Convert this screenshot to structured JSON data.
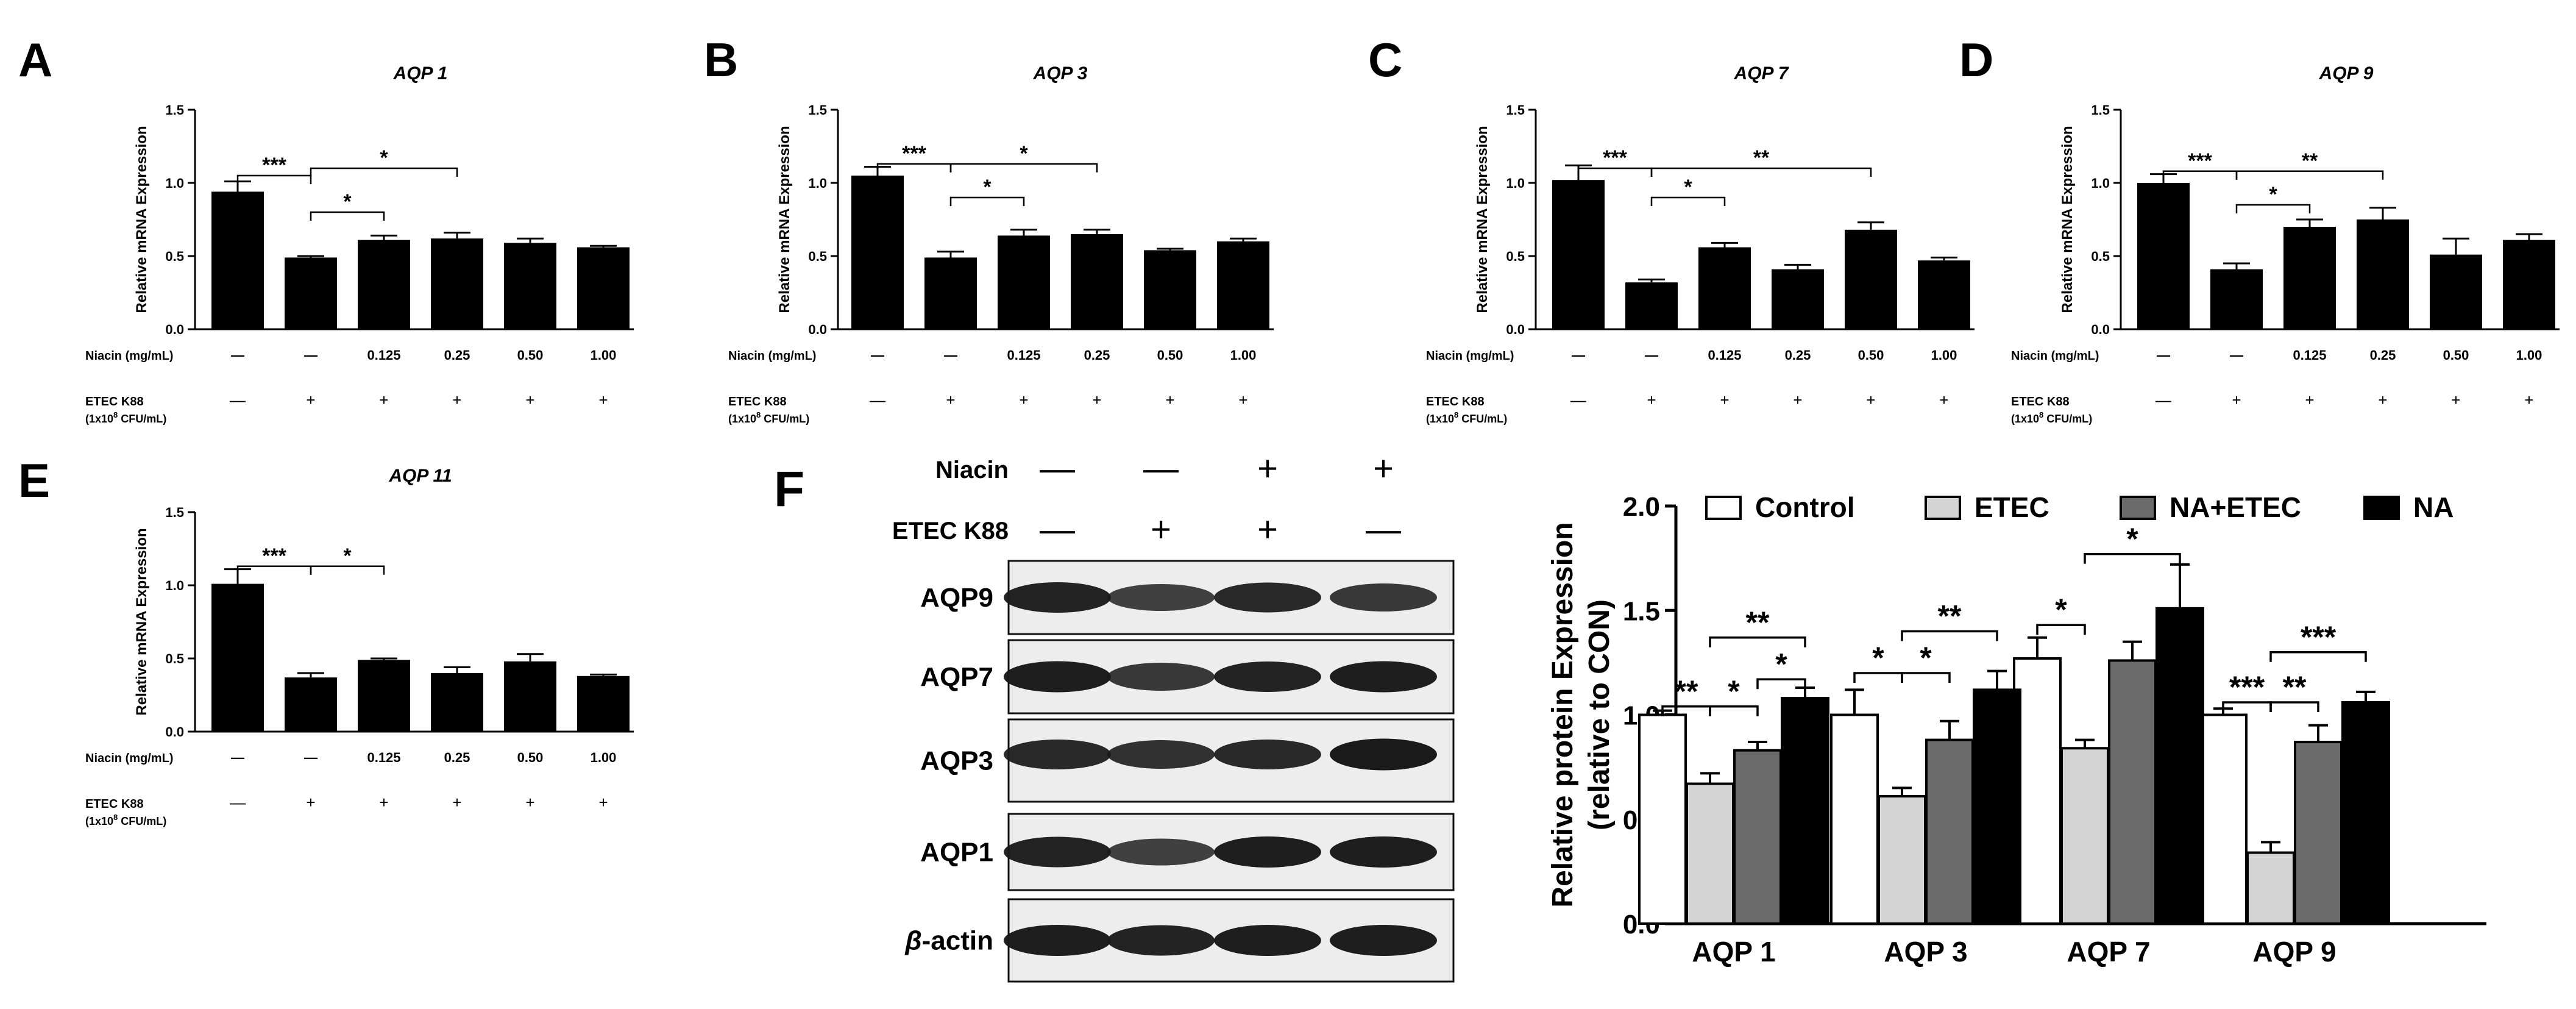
{
  "conditions": {
    "niacin_label": "Niacin (mg/mL)",
    "niacin_values": [
      "—",
      "—",
      "0.125",
      "0.25",
      "0.50",
      "1.00"
    ],
    "etec_label": "ETEC K88",
    "etec_unit_prefix": "(1x10",
    "etec_unit_exp": "8",
    "etec_unit_suffix": " CFU/mL)",
    "etec_values": [
      "—",
      "+",
      "+",
      "+",
      "+",
      "+"
    ]
  },
  "blot": {
    "letter": "F",
    "header_rows": [
      {
        "label": "Niacin",
        "values": [
          "—",
          "—",
          "+",
          "+"
        ]
      },
      {
        "label": "ETEC K88",
        "values": [
          "—",
          "+",
          "+",
          "—"
        ]
      }
    ],
    "bands": [
      "AQP9",
      "AQP7",
      "AQP3",
      "AQP1"
    ],
    "loading_prefix": "β",
    "loading_suffix": "-actin"
  },
  "chart_data": [
    {
      "type": "bar",
      "panel": "A",
      "title": "AQP 1",
      "ylabel": "Relative mRNA Expression",
      "ylim": [
        0,
        1.5
      ],
      "yticks": [
        "0.0",
        "0.5",
        "1.0",
        "1.5"
      ],
      "values": [
        0.94,
        0.49,
        0.61,
        0.62,
        0.59,
        0.56
      ],
      "errors": [
        0.07,
        0.01,
        0.03,
        0.04,
        0.03,
        0.01
      ],
      "annotations": [
        {
          "from": 0,
          "to": 1,
          "label": "***",
          "y": 1.05
        },
        {
          "from": 1,
          "to": 2,
          "label": "*",
          "y": 0.8
        },
        {
          "from": 1,
          "to": 3,
          "label": "*",
          "y": 1.1
        }
      ]
    },
    {
      "type": "bar",
      "panel": "B",
      "title": "AQP 3",
      "ylabel": "Relative mRNA Expression",
      "ylim": [
        0,
        1.5
      ],
      "yticks": [
        "0.0",
        "0.5",
        "1.0",
        "1.5"
      ],
      "values": [
        1.05,
        0.49,
        0.64,
        0.65,
        0.54,
        0.6
      ],
      "errors": [
        0.06,
        0.04,
        0.04,
        0.03,
        0.01,
        0.02
      ],
      "annotations": [
        {
          "from": 0,
          "to": 1,
          "label": "***",
          "y": 1.13
        },
        {
          "from": 1,
          "to": 2,
          "label": "*",
          "y": 0.9
        },
        {
          "from": 1,
          "to": 3,
          "label": "*",
          "y": 1.13
        }
      ]
    },
    {
      "type": "bar",
      "panel": "C",
      "title": "AQP 7",
      "ylabel": "Relative mRNA Expression",
      "ylim": [
        0,
        1.5
      ],
      "yticks": [
        "0.0",
        "0.5",
        "1.0",
        "1.5"
      ],
      "values": [
        1.02,
        0.32,
        0.56,
        0.41,
        0.68,
        0.47
      ],
      "errors": [
        0.1,
        0.02,
        0.03,
        0.03,
        0.05,
        0.02
      ],
      "annotations": [
        {
          "from": 0,
          "to": 1,
          "label": "***",
          "y": 1.1
        },
        {
          "from": 1,
          "to": 2,
          "label": "*",
          "y": 0.9
        },
        {
          "from": 1,
          "to": 4,
          "label": "**",
          "y": 1.1
        }
      ]
    },
    {
      "type": "bar",
      "panel": "D",
      "title": "AQP 9",
      "ylabel": "Relative mRNA Expression",
      "ylim": [
        0,
        1.5
      ],
      "yticks": [
        "0.0",
        "0.5",
        "1.0",
        "1.5"
      ],
      "values": [
        1.0,
        0.41,
        0.7,
        0.75,
        0.51,
        0.61
      ],
      "errors": [
        0.06,
        0.04,
        0.05,
        0.08,
        0.11,
        0.04
      ],
      "annotations": [
        {
          "from": 0,
          "to": 1,
          "label": "***",
          "y": 1.08
        },
        {
          "from": 1,
          "to": 2,
          "label": "*",
          "y": 0.85
        },
        {
          "from": 1,
          "to": 3,
          "label": "**",
          "y": 1.08
        }
      ]
    },
    {
      "type": "bar",
      "panel": "E",
      "title": "AQP 11",
      "ylabel": "Relative mRNA Expression",
      "ylim": [
        0,
        1.5
      ],
      "yticks": [
        "0.0",
        "0.5",
        "1.0",
        "1.5"
      ],
      "values": [
        1.01,
        0.37,
        0.49,
        0.4,
        0.48,
        0.38
      ],
      "errors": [
        0.1,
        0.03,
        0.01,
        0.04,
        0.05,
        0.01
      ],
      "annotations": [
        {
          "from": 0,
          "to": 1,
          "label": "***",
          "y": 1.13
        },
        {
          "from": 1,
          "to": 2,
          "label": "*",
          "y": 1.13
        }
      ]
    },
    {
      "type": "bar",
      "panel": "F",
      "ylabel_lines": [
        "Relative protein Expression",
        "(relative to CON)"
      ],
      "ylim": [
        0,
        2.0
      ],
      "yticks": [
        "0.0",
        "0.5",
        "1.0",
        "1.5",
        "2.0"
      ],
      "categories": [
        "AQP 1",
        "AQP 3",
        "AQP 7",
        "AQP 9"
      ],
      "legend": "top",
      "series": [
        {
          "name": "Control",
          "color": "#ffffff",
          "values": [
            1.0,
            1.0,
            1.27,
            1.0
          ],
          "errors": [
            0.02,
            0.12,
            0.1,
            0.03
          ]
        },
        {
          "name": "ETEC",
          "color": "#d4d4d4",
          "values": [
            0.67,
            0.61,
            0.84,
            0.34
          ],
          "errors": [
            0.05,
            0.04,
            0.04,
            0.05
          ]
        },
        {
          "name": "NA+ETEC",
          "color": "#6b6b6b",
          "values": [
            0.83,
            0.88,
            1.26,
            0.87
          ],
          "errors": [
            0.04,
            0.09,
            0.09,
            0.08
          ]
        },
        {
          "name": "NA",
          "color": "#000000",
          "values": [
            1.08,
            1.12,
            1.51,
            1.06
          ],
          "errors": [
            0.05,
            0.09,
            0.21,
            0.05
          ]
        }
      ],
      "annotations": [
        {
          "group": 0,
          "from": 0,
          "to": 1,
          "label": "**",
          "y": 1.04
        },
        {
          "group": 0,
          "from": 1,
          "to": 2,
          "label": "*",
          "y": 1.04
        },
        {
          "group": 0,
          "from": 2,
          "to": 3,
          "label": "*",
          "y": 1.17
        },
        {
          "group": 0,
          "from": 1,
          "to": 3,
          "label": "**",
          "y": 1.37
        },
        {
          "group": 1,
          "from": 0,
          "to": 1,
          "label": "*",
          "y": 1.2
        },
        {
          "group": 1,
          "from": 1,
          "to": 2,
          "label": "*",
          "y": 1.2
        },
        {
          "group": 1,
          "from": 1,
          "to": 3,
          "label": "**",
          "y": 1.4
        },
        {
          "group": 2,
          "from": 0,
          "to": 1,
          "label": "*",
          "y": 1.43
        },
        {
          "group": 2,
          "from": 1,
          "to": 3,
          "label": "*",
          "y": 1.77
        },
        {
          "group": 3,
          "from": 0,
          "to": 1,
          "label": "***",
          "y": 1.06
        },
        {
          "group": 3,
          "from": 1,
          "to": 2,
          "label": "**",
          "y": 1.06
        },
        {
          "group": 3,
          "from": 1,
          "to": 3,
          "label": "***",
          "y": 1.3
        }
      ]
    }
  ]
}
